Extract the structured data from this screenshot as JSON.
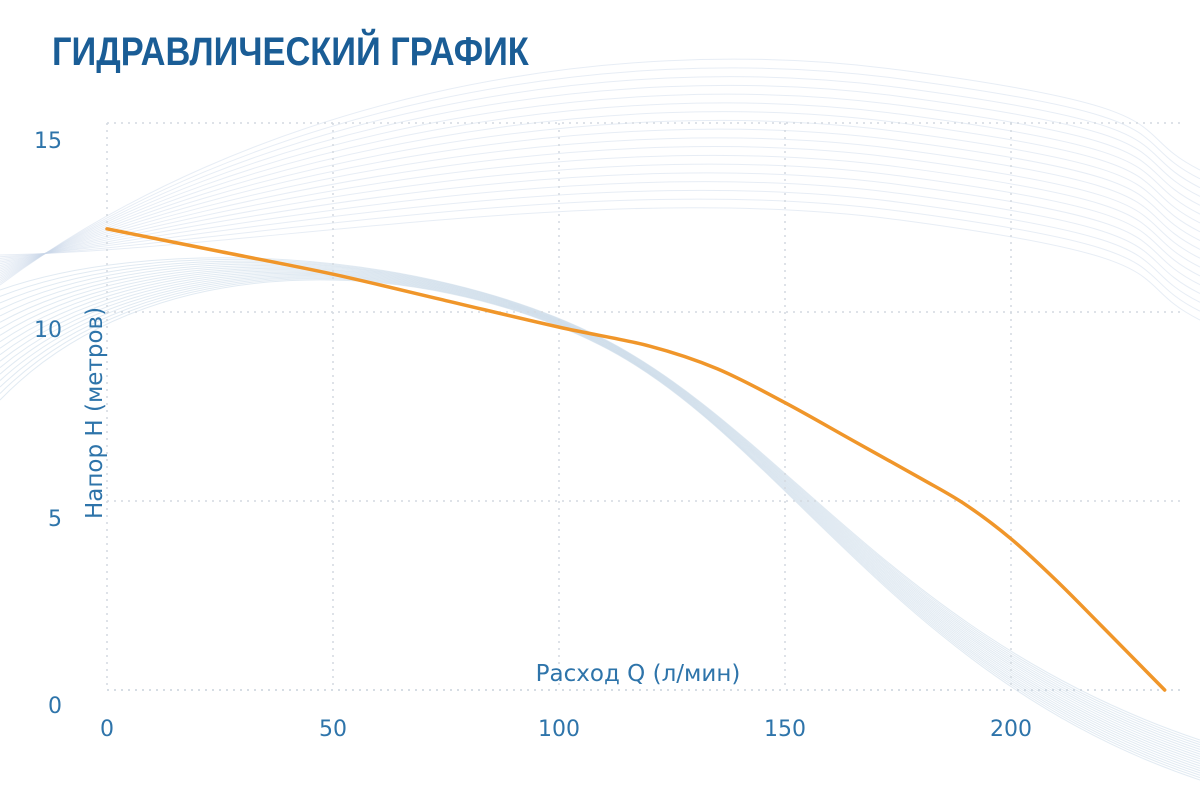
{
  "chart_data": {
    "type": "line",
    "title": "ГИДРАВЛИЧЕСКИЙ ГРАФИК",
    "xlabel": "Расход Q (л/мин)",
    "ylabel": "Напор H (метров)",
    "xlim": [
      0,
      235
    ],
    "ylim": [
      0,
      15
    ],
    "x_ticks": [
      "0",
      "50",
      "100",
      "150",
      "200"
    ],
    "y_ticks": [
      "0",
      "5",
      "10",
      "15"
    ],
    "grid": true,
    "series": [
      {
        "x": [
          0,
          25,
          50,
          75,
          100,
          120,
          135,
          150,
          165,
          180,
          190,
          200,
          210,
          220,
          234
        ],
        "y": [
          12.2,
          11.6,
          11.0,
          10.3,
          9.6,
          9.1,
          8.5,
          7.6,
          6.6,
          5.6,
          4.9,
          4.0,
          2.9,
          1.7,
          0.0
        ],
        "color": "#f0962a"
      }
    ],
    "decoration_color": "#c9d8e8"
  }
}
